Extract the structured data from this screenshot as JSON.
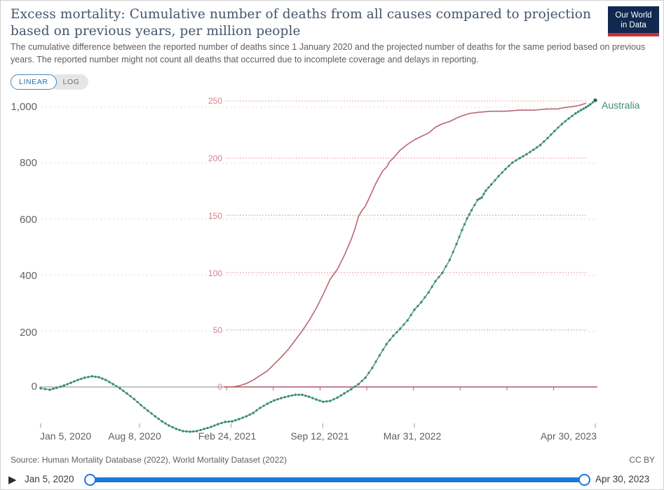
{
  "header": {
    "title": "Excess mortality: Cumulative number of deaths from all causes compared to projection based on previous years, per million people",
    "subtitle": "The cumulative difference between the reported number of deaths since 1 January 2020 and the projected number of deaths for the same period based on previous years. The reported number might not count all deaths that occurred due to incomplete coverage and delays in reporting.",
    "logo": {
      "line1": "Our World",
      "line2": "in Data"
    }
  },
  "controls": {
    "linear_label": "LINEAR",
    "log_label": "LOG"
  },
  "chart_data": {
    "type": "line",
    "title": "Excess mortality: Cumulative number of deaths from all causes compared to projection based on previous years, per million people",
    "x_axis": {
      "tick_labels": [
        "Jan 5, 2020",
        "Aug 8, 2020",
        "Feb 24, 2021",
        "Sep 12, 2021",
        "Mar 31, 2022",
        "Apr 30, 2023"
      ],
      "tick_days": [
        0,
        216,
        416,
        616,
        816,
        1211
      ],
      "range_days": [
        0,
        1211
      ]
    },
    "y_axis_left": {
      "tick_labels": [
        "1,000",
        "800",
        "600",
        "400",
        "200",
        "0"
      ],
      "tick_values": [
        1000,
        800,
        600,
        400,
        200,
        0
      ],
      "range": [
        -170,
        1040
      ],
      "grid_color": "#d9d9d9",
      "zero_line_color": "#a0a0a0",
      "label_color": "#636363"
    },
    "y_axis_right": {
      "tick_labels": [
        "250",
        "200",
        "150",
        "100",
        "50",
        "0"
      ],
      "tick_values": [
        250,
        200,
        150,
        100,
        50,
        0
      ],
      "range": [
        0,
        250
      ],
      "grid_color": "#efb6ba",
      "axis_color": "#bc5f6d",
      "label_color": "#d4858e",
      "axis_tick_days": [
        406,
        508,
        610,
        712,
        814,
        916,
        1018,
        1120
      ]
    },
    "series": [
      {
        "name": "Australia",
        "axis": "left",
        "color": "#5aa189",
        "marker_color": "#378a6d",
        "end_marker_color": "#1e6e55",
        "points": [
          [
            0,
            -5
          ],
          [
            20,
            -10
          ],
          [
            35,
            -3
          ],
          [
            51,
            5
          ],
          [
            66,
            15
          ],
          [
            81,
            25
          ],
          [
            96,
            33
          ],
          [
            112,
            38
          ],
          [
            127,
            35
          ],
          [
            142,
            25
          ],
          [
            158,
            10
          ],
          [
            173,
            -5
          ],
          [
            188,
            -23
          ],
          [
            204,
            -43
          ],
          [
            219,
            -65
          ],
          [
            234,
            -85
          ],
          [
            250,
            -105
          ],
          [
            265,
            -123
          ],
          [
            280,
            -138
          ],
          [
            296,
            -150
          ],
          [
            311,
            -158
          ],
          [
            326,
            -160
          ],
          [
            341,
            -158
          ],
          [
            357,
            -150
          ],
          [
            372,
            -143
          ],
          [
            387,
            -133
          ],
          [
            403,
            -125
          ],
          [
            418,
            -123
          ],
          [
            433,
            -115
          ],
          [
            449,
            -105
          ],
          [
            464,
            -93
          ],
          [
            479,
            -75
          ],
          [
            495,
            -60
          ],
          [
            510,
            -48
          ],
          [
            525,
            -40
          ],
          [
            541,
            -33
          ],
          [
            556,
            -28
          ],
          [
            571,
            -28
          ],
          [
            586,
            -35
          ],
          [
            602,
            -45
          ],
          [
            617,
            -53
          ],
          [
            632,
            -50
          ],
          [
            648,
            -38
          ],
          [
            663,
            -23
          ],
          [
            678,
            -8
          ],
          [
            694,
            10
          ],
          [
            709,
            33
          ],
          [
            724,
            68
          ],
          [
            740,
            113
          ],
          [
            755,
            153
          ],
          [
            770,
            183
          ],
          [
            785,
            208
          ],
          [
            801,
            238
          ],
          [
            816,
            276
          ],
          [
            831,
            303
          ],
          [
            847,
            338
          ],
          [
            862,
            378
          ],
          [
            877,
            408
          ],
          [
            893,
            454
          ],
          [
            908,
            511
          ],
          [
            920,
            561
          ],
          [
            931,
            602
          ],
          [
            941,
            632
          ],
          [
            954,
            669
          ],
          [
            963,
            677
          ],
          [
            972,
            702
          ],
          [
            984,
            724
          ],
          [
            1000,
            754
          ],
          [
            1015,
            779
          ],
          [
            1030,
            802
          ],
          [
            1046,
            818
          ],
          [
            1061,
            832
          ],
          [
            1076,
            848
          ],
          [
            1091,
            865
          ],
          [
            1107,
            890
          ],
          [
            1122,
            915
          ],
          [
            1138,
            940
          ],
          [
            1153,
            960
          ],
          [
            1168,
            978
          ],
          [
            1180,
            990
          ],
          [
            1191,
            1000
          ],
          [
            1200,
            1010
          ],
          [
            1211,
            1025
          ]
        ]
      },
      {
        "name": "",
        "axis": "right",
        "color": "#bc6571",
        "points": [
          [
            400,
            0
          ],
          [
            418,
            0
          ],
          [
            433,
            1
          ],
          [
            449,
            3
          ],
          [
            464,
            6
          ],
          [
            479,
            10
          ],
          [
            495,
            14
          ],
          [
            510,
            20
          ],
          [
            525,
            26
          ],
          [
            541,
            33
          ],
          [
            556,
            41
          ],
          [
            571,
            49
          ],
          [
            586,
            58
          ],
          [
            602,
            69
          ],
          [
            617,
            81
          ],
          [
            632,
            94
          ],
          [
            648,
            103
          ],
          [
            663,
            115
          ],
          [
            678,
            129
          ],
          [
            686,
            138
          ],
          [
            694,
            149
          ],
          [
            701,
            154
          ],
          [
            709,
            158
          ],
          [
            716,
            164
          ],
          [
            724,
            171
          ],
          [
            732,
            178
          ],
          [
            740,
            184
          ],
          [
            747,
            189
          ],
          [
            755,
            192
          ],
          [
            762,
            197
          ],
          [
            770,
            200
          ],
          [
            785,
            207
          ],
          [
            801,
            212
          ],
          [
            816,
            216
          ],
          [
            831,
            219
          ],
          [
            847,
            222
          ],
          [
            862,
            227
          ],
          [
            877,
            230
          ],
          [
            893,
            232
          ],
          [
            908,
            235
          ],
          [
            920,
            237
          ],
          [
            928,
            238
          ],
          [
            935,
            239
          ],
          [
            954,
            240
          ],
          [
            984,
            241
          ],
          [
            1015,
            241
          ],
          [
            1046,
            242
          ],
          [
            1076,
            242
          ],
          [
            1107,
            243
          ],
          [
            1130,
            243
          ],
          [
            1140,
            244
          ],
          [
            1160,
            245
          ],
          [
            1175,
            246
          ],
          [
            1191,
            248
          ]
        ]
      }
    ],
    "legend_position": "right-of-line"
  },
  "footer": {
    "source": "Source: Human Mortality Database (2022), World Mortality Dataset (2022)",
    "license": "CC BY"
  },
  "timeline": {
    "play_icon_glyph": "▶",
    "start_label": "Jan 5, 2020",
    "end_label": "Apr 30, 2023",
    "track_color": "#1d78dc"
  }
}
